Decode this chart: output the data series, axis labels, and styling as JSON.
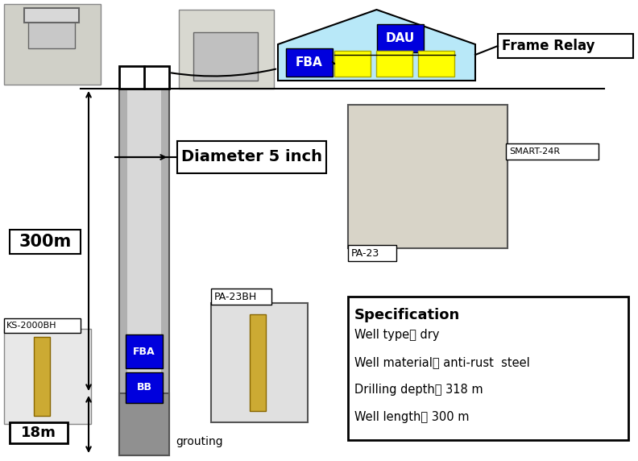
{
  "fig_width": 7.92,
  "fig_height": 5.72,
  "bg_color": "#ffffff",
  "frame_relay_text": "Frame Relay",
  "fba_text": "FBA",
  "dau_text": "DAU",
  "bb_text": "BB",
  "fba_bottom_text": "FBA",
  "ks2000bh_text": "KS-2000BH",
  "pa23_text": "PA-23",
  "pa23bh_text": "PA-23BH",
  "smart24r_text": "SMART-24R",
  "diameter_text": "Diameter 5 inch",
  "depth_300m_text": "300m",
  "depth_18m_text": "18m",
  "grouting_text": "grouting",
  "spec_title": "Specification",
  "spec_lines": [
    "Well type： dry",
    "Well material： anti-rust  steel",
    "Drilling depth： 318 m",
    "Well length： 300 m"
  ],
  "house_color": "#b8e8f8",
  "fba_color": "#0000dd",
  "dau_color": "#0000dd",
  "yellow_color": "#ffff00",
  "yellow_edge": "#aaaa00",
  "bh_outer_color": "#b0b0b0",
  "bh_inner_color": "#d8d8d8",
  "grout_color": "#909090"
}
